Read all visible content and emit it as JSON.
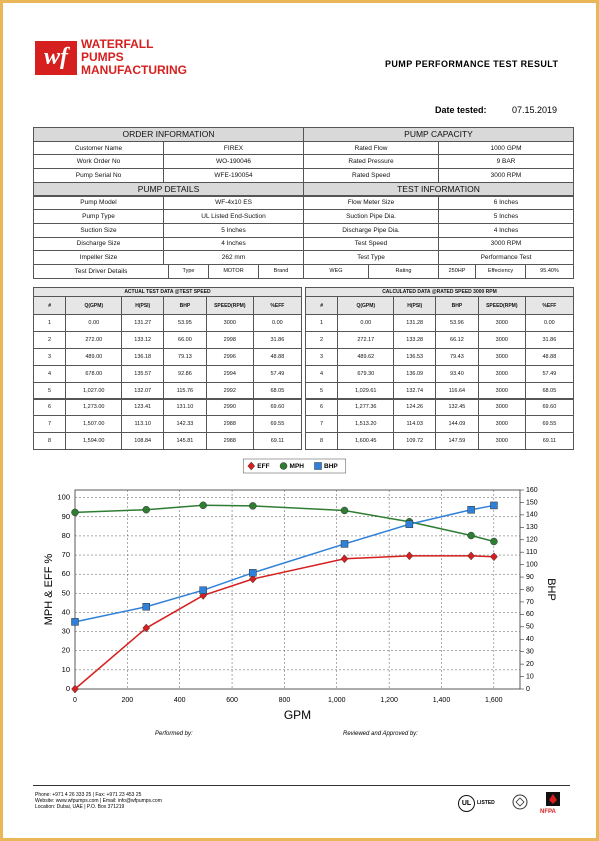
{
  "header": {
    "logo_mark": "wf",
    "company": [
      "WATERFALL",
      "PUMPS",
      "MANUFACTURING"
    ],
    "title": "PUMP PERFORMANCE TEST RESULT",
    "date_label": "Date tested:",
    "date": "07.15.2019"
  },
  "info": {
    "sections": [
      {
        "left_title": "ORDER INFORMATION",
        "right_title": "PUMP CAPACITY",
        "rows": [
          [
            "Customer Name",
            "FIREX",
            "Rated Flow",
            "1000 GPM"
          ],
          [
            "Work Order No",
            "WO-190046",
            "Rated Pressure",
            "9 BAR"
          ],
          [
            "Pump Serial No",
            "WFE-190054",
            "Rated Speed",
            "3000 RPM"
          ]
        ]
      },
      {
        "left_title": "PUMP DETAILS",
        "right_title": "TEST INFORMATION",
        "rows": [
          [
            "Pump Model",
            "WF-4x10 ES",
            "Flow Meter Size",
            "6 Inches"
          ],
          [
            "Pump Type",
            "UL Listed End-Suction",
            "Suction Pipe Dia.",
            "5 Inches"
          ],
          [
            "Suction Size",
            "5 Inches",
            "Discharge Pipe Dia.",
            "4 Inches"
          ],
          [
            "Discharge Size",
            "4 Inches",
            "Test Speed",
            "3000 RPM"
          ],
          [
            "Impeller Size",
            "262 mm",
            "Test Type",
            "Performance Test"
          ]
        ]
      }
    ],
    "driver": {
      "label": "Test Driver Details",
      "cells": [
        "Type",
        "MOTOR",
        "Brand",
        "WEG",
        "Rating",
        "250HP",
        "Effeciency",
        "95.40%"
      ]
    }
  },
  "performance": {
    "tables": [
      {
        "title": "ACTUAL TEST DATA @TEST SPEED",
        "columns": [
          "#",
          "Q(GPM)",
          "H(PSI)",
          "BHP",
          "SPEED(RPM)",
          "%EFF"
        ],
        "rows": [
          [
            "1",
            "0.00",
            "131.27",
            "53.95",
            "3000",
            "0.00"
          ],
          [
            "2",
            "272.00",
            "133.12",
            "66.00",
            "2998",
            "31.86"
          ],
          [
            "3",
            "489.00",
            "136.18",
            "79.13",
            "2996",
            "48.88"
          ],
          [
            "4",
            "678.00",
            "135.57",
            "92.86",
            "2994",
            "57.49"
          ],
          [
            "5",
            "1,027.00",
            "132.07",
            "115.76",
            "2992",
            "68.05"
          ],
          [
            "6",
            "1,273.00",
            "123.41",
            "131.10",
            "2990",
            "69.60"
          ],
          [
            "7",
            "1,507.00",
            "113.10",
            "142.33",
            "2988",
            "69.55"
          ],
          [
            "8",
            "1,594.00",
            "108.84",
            "145.81",
            "2988",
            "69.11"
          ]
        ]
      },
      {
        "title": "CALCULATED DATA @RATED SPEED 3000 RPM",
        "columns": [
          "#",
          "Q(GPM)",
          "H(PSI)",
          "BHP",
          "SPEED(RPM)",
          "%EFF"
        ],
        "rows": [
          [
            "1",
            "0.00",
            "131.28",
            "53.96",
            "3000",
            "0.00"
          ],
          [
            "2",
            "272.17",
            "133.28",
            "66.12",
            "3000",
            "31.86"
          ],
          [
            "3",
            "489.62",
            "136.53",
            "79.43",
            "3000",
            "48.88"
          ],
          [
            "4",
            "679.30",
            "136.09",
            "93.40",
            "3000",
            "57.49"
          ],
          [
            "5",
            "1,029.61",
            "132.74",
            "116.64",
            "3000",
            "68.05"
          ],
          [
            "6",
            "1,277.36",
            "124.26",
            "132.45",
            "3000",
            "69.60"
          ],
          [
            "7",
            "1,513.20",
            "114.03",
            "144.09",
            "3000",
            "69.55"
          ],
          [
            "8",
            "1,600.45",
            "109.72",
            "147.59",
            "3000",
            "69.11"
          ]
        ]
      }
    ]
  },
  "chart_data": {
    "type": "line",
    "x_label": "GPM",
    "y_label": "MPH & EFF %",
    "y2_label": "BHP",
    "x": [
      0,
      272.17,
      489.62,
      679.3,
      1029.61,
      1277.36,
      1513.2,
      1600.45
    ],
    "series": [
      {
        "name": "EFF",
        "color": "#d61f1f",
        "marker": "diamond",
        "values": [
          0,
          31.86,
          48.88,
          57.49,
          68.05,
          69.6,
          69.55,
          69.11
        ]
      },
      {
        "name": "MPH",
        "color": "#2e7d32",
        "marker": "circle",
        "values": [
          92.3,
          93.7,
          96.0,
          95.7,
          93.3,
          87.4,
          80.2,
          77.1
        ]
      },
      {
        "name": "BHP",
        "color": "#2f80d8",
        "marker": "square",
        "axis": "y2",
        "values": [
          53.96,
          66.12,
          79.43,
          93.4,
          116.64,
          132.45,
          144.09,
          147.59
        ]
      }
    ],
    "xlim": [
      0,
      1700
    ],
    "xticks": [
      0,
      200,
      400,
      600,
      800,
      {
        "value": 1000,
        "label": "1,000"
      },
      {
        "value": 1200,
        "label": "1,200"
      },
      {
        "value": 1400,
        "label": "1,400"
      },
      {
        "value": 1600,
        "label": "1,600"
      }
    ],
    "ylim": [
      0,
      104
    ],
    "yticks": [
      0,
      10,
      20,
      30,
      40,
      50,
      60,
      70,
      80,
      90,
      100
    ],
    "y2lim": [
      0,
      160
    ],
    "y2ticks": [
      0,
      10,
      20,
      30,
      40,
      50,
      60,
      70,
      80,
      90,
      100,
      110,
      120,
      130,
      140,
      150,
      160
    ],
    "grid": true,
    "legend": "top"
  },
  "signatures": [
    "Performed by:",
    "Reviewed and Approved by:"
  ],
  "footer": {
    "contact": [
      "Phone: +971 4 26 333 25 | Fax: +971 23 453 25",
      "Website: www.wfpumps.com | Email: info@wfpumps.com",
      "Location: Dubai, UAE | P.O. Box 371219"
    ],
    "certifications": [
      "UL",
      "LISTED",
      "NFPA"
    ]
  }
}
